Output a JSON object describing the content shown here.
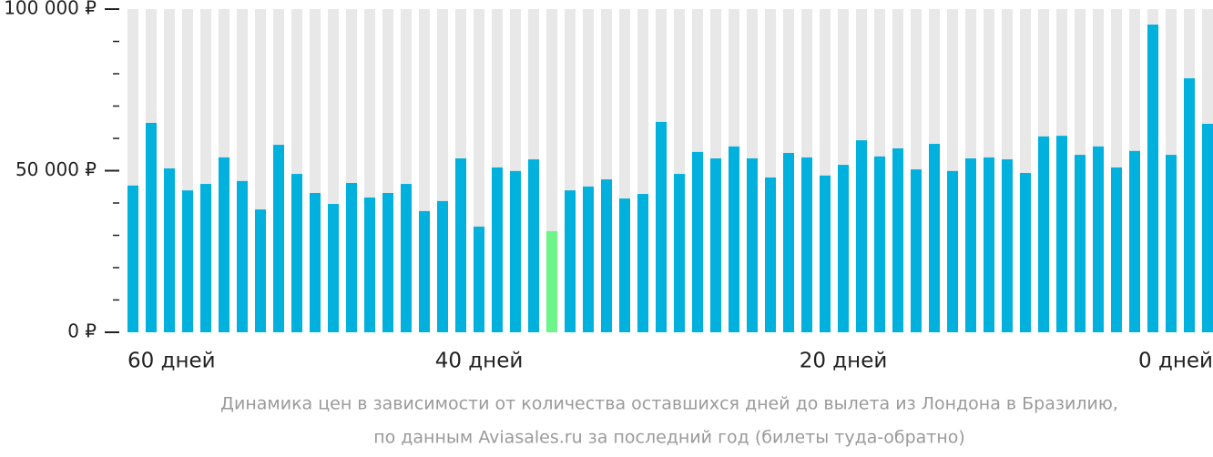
{
  "chart_data": {
    "type": "bar",
    "categories": [
      "60 дней",
      null,
      null,
      null,
      null,
      null,
      null,
      null,
      null,
      null,
      null,
      null,
      null,
      null,
      null,
      null,
      null,
      null,
      null,
      "40 дней",
      null,
      null,
      null,
      null,
      null,
      null,
      null,
      null,
      null,
      null,
      null,
      null,
      null,
      null,
      null,
      null,
      null,
      null,
      null,
      "20 дней",
      null,
      null,
      null,
      null,
      null,
      null,
      null,
      null,
      null,
      null,
      null,
      null,
      null,
      null,
      null,
      null,
      null,
      null,
      null,
      "0 дней"
    ],
    "values": [
      45400,
      64800,
      50700,
      43900,
      45900,
      54100,
      46800,
      38000,
      58000,
      49000,
      43100,
      39700,
      46200,
      41700,
      43100,
      45900,
      37500,
      40600,
      53800,
      32700,
      51000,
      49900,
      53500,
      31300,
      43900,
      45100,
      47300,
      41400,
      42800,
      65100,
      49000,
      55800,
      53800,
      57500,
      53800,
      47900,
      55500,
      54100,
      48500,
      51800,
      59400,
      54400,
      56900,
      50400,
      58300,
      49900,
      53800,
      54100,
      53500,
      49300,
      60600,
      60800,
      54900,
      57500,
      51000,
      56100,
      95200,
      54900,
      78600,
      64500
    ],
    "color": "#00b0dd",
    "highlight_color": "#6df58a",
    "highlight_index": 23,
    "ylim": [
      0,
      100000
    ],
    "yticks": [
      {
        "value": 0,
        "label": "0 ₽"
      },
      {
        "value": 50000,
        "label": "50 000 ₽"
      },
      {
        "value": 100000,
        "label": "100 000 ₽"
      }
    ],
    "minor_yticks": [
      10000,
      20000,
      30000,
      40000,
      60000,
      70000,
      80000,
      90000
    ],
    "caption": [
      "Динамика цен в зависимости от количества оставшихся дней до вылета из Лондона в Бразилию,",
      "по данным Aviasales.ru за последний год (билеты туда-обратно)"
    ]
  }
}
